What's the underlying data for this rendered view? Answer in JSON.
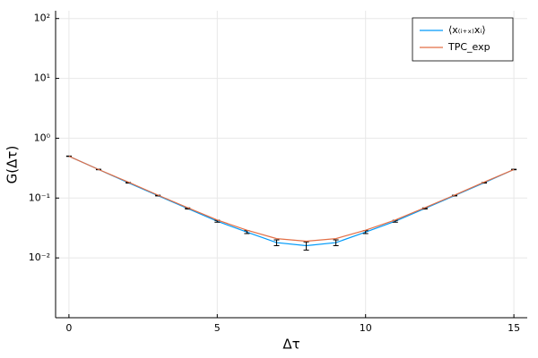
{
  "chart_data": {
    "type": "line",
    "xlabel": "Δτ",
    "ylabel": "G(Δτ)",
    "x": [
      0,
      1,
      2,
      3,
      4,
      5,
      6,
      7,
      8,
      9,
      10,
      11,
      12,
      13,
      14,
      15
    ],
    "series": [
      {
        "name": "⟨x₍ᵢ₊ₓ₎xᵢ⟩",
        "color": "#009af9",
        "values": [
          0.5,
          0.3,
          0.18,
          0.11,
          0.067,
          0.041,
          0.027,
          0.018,
          0.016,
          0.018,
          0.027,
          0.041,
          0.067,
          0.11,
          0.18,
          0.3
        ],
        "errors": [
          0.004,
          0.003,
          0.002,
          0.0015,
          0.0015,
          0.0015,
          0.0015,
          0.002,
          0.0025,
          0.002,
          0.0015,
          0.0015,
          0.0015,
          0.0015,
          0.002,
          0.003
        ]
      },
      {
        "name": "TPC_exp",
        "color": "#e26f46",
        "values": [
          0.5,
          0.3,
          0.185,
          0.112,
          0.069,
          0.043,
          0.029,
          0.021,
          0.019,
          0.021,
          0.029,
          0.043,
          0.069,
          0.112,
          0.185,
          0.3
        ]
      }
    ],
    "xlim": [
      -0.45,
      15.45
    ],
    "xticks": [
      0,
      5,
      10,
      15
    ],
    "ylim": [
      0.001,
      135
    ],
    "log_y": true,
    "yticks": [
      {
        "value": 0.01,
        "label": "10⁻²"
      },
      {
        "value": 0.1,
        "label": "10⁻¹"
      },
      {
        "value": 1,
        "label": "10⁰"
      },
      {
        "value": 10,
        "label": "10¹"
      },
      {
        "value": 100,
        "label": "10²"
      }
    ],
    "grid": true,
    "legend": "top-right"
  }
}
